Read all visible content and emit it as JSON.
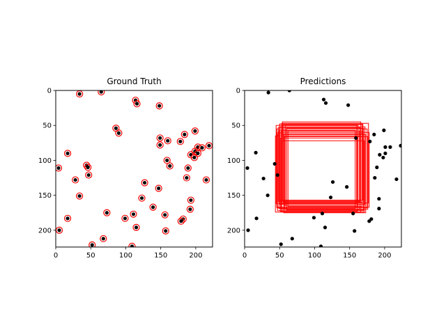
{
  "chart_data": [
    {
      "type": "scatter",
      "title": "Ground Truth",
      "xlim": [
        0,
        224
      ],
      "ylim": [
        224,
        0
      ],
      "y_inverted": true,
      "xticks": [
        0,
        50,
        100,
        150,
        200
      ],
      "yticks": [
        0,
        50,
        100,
        150,
        200
      ],
      "point_color": "#000000",
      "marker_edge_color": "#ff0000",
      "points": [
        [
          34,
          5
        ],
        [
          65,
          2
        ],
        [
          114,
          14
        ],
        [
          116,
          19
        ],
        [
          148,
          22
        ],
        [
          86,
          54
        ],
        [
          90,
          61
        ],
        [
          149,
          68
        ],
        [
          160,
          72
        ],
        [
          178,
          73
        ],
        [
          184,
          63
        ],
        [
          199,
          58
        ],
        [
          149,
          78
        ],
        [
          203,
          81
        ],
        [
          209,
          82
        ],
        [
          199,
          87
        ],
        [
          203,
          90
        ],
        [
          219,
          79
        ],
        [
          17,
          90
        ],
        [
          193,
          92
        ],
        [
          198,
          96
        ],
        [
          159,
          100
        ],
        [
          163,
          108
        ],
        [
          44,
          107
        ],
        [
          46,
          110
        ],
        [
          4,
          111
        ],
        [
          189,
          111
        ],
        [
          47,
          121
        ],
        [
          187,
          125
        ],
        [
          28,
          128
        ],
        [
          215,
          128
        ],
        [
          127,
          132
        ],
        [
          147,
          140
        ],
        [
          34,
          151
        ],
        [
          123,
          154
        ],
        [
          193,
          157
        ],
        [
          139,
          167
        ],
        [
          192,
          170
        ],
        [
          73,
          175
        ],
        [
          111,
          177
        ],
        [
          156,
          178
        ],
        [
          99,
          183
        ],
        [
          182,
          184
        ],
        [
          179,
          187
        ],
        [
          17,
          183
        ],
        [
          115,
          196
        ],
        [
          157,
          201
        ],
        [
          5,
          200
        ],
        [
          68,
          212
        ],
        [
          52,
          221
        ],
        [
          109,
          223
        ]
      ]
    },
    {
      "type": "scatter",
      "title": "Predictions",
      "xlim": [
        0,
        224
      ],
      "ylim": [
        224,
        0
      ],
      "y_inverted": true,
      "xticks": [
        0,
        50,
        100,
        150,
        200
      ],
      "yticks": [
        0,
        50,
        100,
        150,
        200
      ],
      "point_color": "#000000",
      "box_color": "#ff0000",
      "points": [
        [
          34,
          3
        ],
        [
          64,
          0
        ],
        [
          113,
          13
        ],
        [
          116,
          18
        ],
        [
          148,
          21
        ],
        [
          159,
          68
        ],
        [
          179,
          73
        ],
        [
          185,
          63
        ],
        [
          199,
          57
        ],
        [
          201,
          81
        ],
        [
          208,
          81
        ],
        [
          223,
          79
        ],
        [
          16,
          89
        ],
        [
          193,
          92
        ],
        [
          198,
          96
        ],
        [
          201,
          90
        ],
        [
          4,
          111
        ],
        [
          189,
          110
        ],
        [
          47,
          121
        ],
        [
          186,
          125
        ],
        [
          27,
          126
        ],
        [
          217,
          127
        ],
        [
          126,
          131
        ],
        [
          146,
          138
        ],
        [
          33,
          150
        ],
        [
          123,
          153
        ],
        [
          192,
          155
        ],
        [
          192,
          169
        ],
        [
          111,
          176
        ],
        [
          155,
          176
        ],
        [
          99,
          182
        ],
        [
          181,
          184
        ],
        [
          178,
          187
        ],
        [
          17,
          183
        ],
        [
          115,
          196
        ],
        [
          157,
          201
        ],
        [
          5,
          200
        ],
        [
          68,
          212
        ],
        [
          52,
          220
        ],
        [
          109,
          223
        ],
        [
          43,
          105
        ]
      ],
      "boxes": [
        [
          54,
          45,
          166,
          158
        ],
        [
          55,
          49,
          168,
          160
        ],
        [
          50,
          52,
          172,
          163
        ],
        [
          46,
          55,
          175,
          168
        ],
        [
          52,
          58,
          164,
          170
        ],
        [
          47,
          62,
          170,
          172
        ],
        [
          44,
          65,
          166,
          174
        ],
        [
          58,
          50,
          162,
          165
        ],
        [
          53,
          47,
          177,
          161
        ],
        [
          49,
          57,
          158,
          169
        ],
        [
          46,
          60,
          178,
          167
        ],
        [
          60,
          54,
          170,
          171
        ],
        [
          56,
          63,
          173,
          175
        ],
        [
          51,
          68,
          161,
          173
        ],
        [
          48,
          53,
          165,
          159
        ],
        [
          62,
          58,
          168,
          166
        ],
        [
          45,
          50,
          160,
          162
        ],
        [
          57,
          66,
          176,
          170
        ],
        [
          53,
          72,
          171,
          174
        ],
        [
          50,
          48,
          169,
          157
        ]
      ]
    }
  ]
}
